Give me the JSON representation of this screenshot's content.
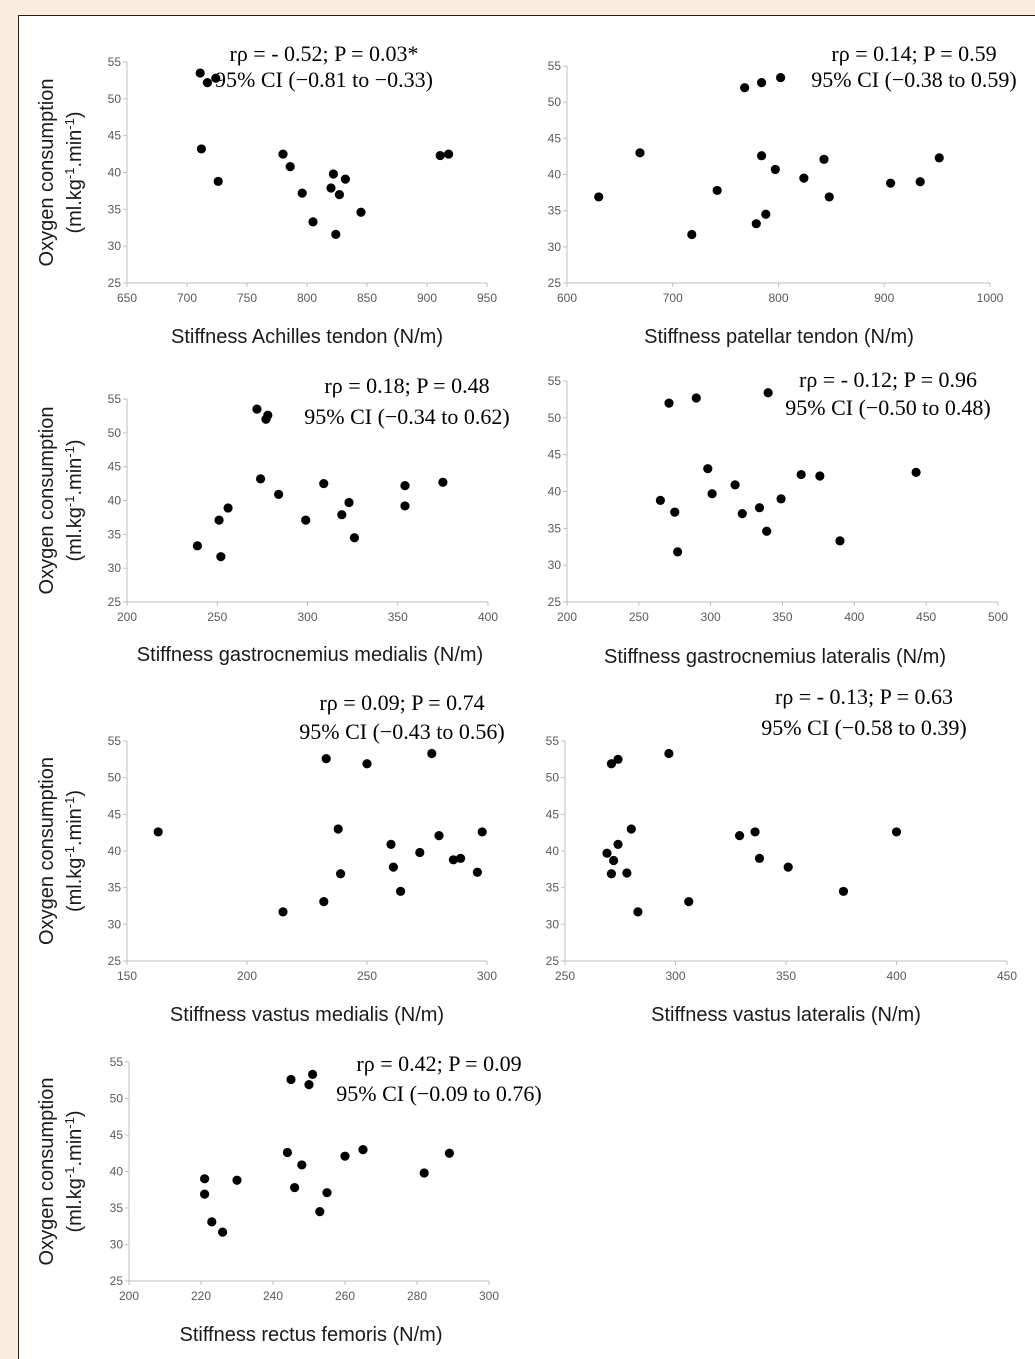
{
  "colors": {
    "page_background": "#fbeee0",
    "panel_background": "#ffffff",
    "point": "#000000",
    "axis": "#bfbfbf",
    "tick_text": "#595959"
  },
  "chart_data": [
    {
      "type": "scatter",
      "xlabel": "Stiffness Achilles tendon (N/m)",
      "ylabel": "Oxygen consumption (ml.kg-1.min-1)",
      "xlim": [
        650,
        950
      ],
      "ylim": [
        25,
        55
      ],
      "xticks": [
        "650",
        "700",
        "750",
        "800",
        "850",
        "900",
        "950"
      ],
      "yticks": [
        "25",
        "30",
        "35",
        "40",
        "45",
        "50",
        "55"
      ],
      "annotation": [
        "rρ = - 0.52; P = 0.03*",
        "95% CI (−0.81 to −0.33)"
      ],
      "points": [
        [
          711,
          53.5
        ],
        [
          717,
          52.2
        ],
        [
          724,
          52.8
        ],
        [
          712,
          43.2
        ],
        [
          726,
          38.8
        ],
        [
          780,
          42.5
        ],
        [
          786,
          40.8
        ],
        [
          796,
          37.2
        ],
        [
          805,
          33.3
        ],
        [
          822,
          39.8
        ],
        [
          820,
          37.9
        ],
        [
          832,
          39.1
        ],
        [
          827,
          37
        ],
        [
          824,
          31.6
        ],
        [
          845,
          34.6
        ],
        [
          911,
          42.3
        ],
        [
          918,
          42.5
        ]
      ]
    },
    {
      "type": "scatter",
      "xlabel": "Stiffness patellar tendon (N/m)",
      "ylabel": "",
      "xlim": [
        600,
        1000
      ],
      "ylim": [
        25,
        55
      ],
      "xticks": [
        "600",
        "700",
        "800",
        "900",
        "1000"
      ],
      "yticks": [
        "25",
        "30",
        "35",
        "40",
        "45",
        "50",
        "55"
      ],
      "annotation": [
        "rρ = 0.14; P = 0.59",
        "95% CI (−0.38 to 0.59)"
      ],
      "points": [
        [
          630,
          36.9
        ],
        [
          669,
          43
        ],
        [
          718,
          31.7
        ],
        [
          742,
          37.8
        ],
        [
          768,
          52
        ],
        [
          784,
          52.7
        ],
        [
          802,
          53.4
        ],
        [
          779,
          33.2
        ],
        [
          788,
          34.5
        ],
        [
          784,
          42.6
        ],
        [
          797,
          40.7
        ],
        [
          824,
          39.5
        ],
        [
          843,
          42.1
        ],
        [
          848,
          36.9
        ],
        [
          906,
          38.8
        ],
        [
          934,
          39
        ],
        [
          952,
          42.3
        ]
      ]
    },
    {
      "type": "scatter",
      "xlabel": "Stiffness gastrocnemius medialis (N/m)",
      "ylabel": "Oxygen consumption (ml.kg-1.min-1)",
      "xlim": [
        200,
        400
      ],
      "ylim": [
        25,
        55
      ],
      "xticks": [
        "200",
        "250",
        "300",
        "350",
        "400"
      ],
      "yticks": [
        "25",
        "30",
        "35",
        "40",
        "45",
        "50",
        "55"
      ],
      "annotation": [
        "rρ = 0.18; P = 0.48",
        "95% CI (−0.34 to 0.62)"
      ],
      "points": [
        [
          272,
          53.5
        ],
        [
          278,
          52.6
        ],
        [
          277,
          52
        ],
        [
          239,
          33.3
        ],
        [
          251,
          37.1
        ],
        [
          252,
          31.7
        ],
        [
          256,
          38.9
        ],
        [
          274,
          43.2
        ],
        [
          284,
          40.9
        ],
        [
          299,
          37.1
        ],
        [
          309,
          42.5
        ],
        [
          319,
          37.9
        ],
        [
          323,
          39.7
        ],
        [
          326,
          34.5
        ],
        [
          354,
          42.2
        ],
        [
          354,
          39.2
        ],
        [
          375,
          42.7
        ]
      ]
    },
    {
      "type": "scatter",
      "xlabel": "Stiffness gastrocnemius lateralis (N/m)",
      "ylabel": "",
      "xlim": [
        200,
        500
      ],
      "ylim": [
        25,
        55
      ],
      "xticks": [
        "200",
        "250",
        "300",
        "350",
        "400",
        "450",
        "500"
      ],
      "yticks": [
        "25",
        "30",
        "35",
        "40",
        "45",
        "50",
        "55"
      ],
      "annotation": [
        "rρ = - 0.12; P = 0.96",
        "95% CI (−0.50 to 0.48)"
      ],
      "points": [
        [
          271,
          52
        ],
        [
          290,
          52.7
        ],
        [
          340,
          53.4
        ],
        [
          265,
          38.8
        ],
        [
          275,
          37.2
        ],
        [
          277,
          31.8
        ],
        [
          298,
          43.1
        ],
        [
          301,
          39.7
        ],
        [
          317,
          40.9
        ],
        [
          322,
          37
        ],
        [
          334,
          37.8
        ],
        [
          339,
          34.6
        ],
        [
          349,
          39
        ],
        [
          363,
          42.3
        ],
        [
          376,
          42.1
        ],
        [
          390,
          33.3
        ],
        [
          443,
          42.6
        ]
      ]
    },
    {
      "type": "scatter",
      "xlabel": "Stiffness vastus medialis (N/m)",
      "ylabel": "Oxygen consumption (ml.kg-1.min-1)",
      "xlim": [
        150,
        300
      ],
      "ylim": [
        25,
        55
      ],
      "xticks": [
        "150",
        "200",
        "250",
        "300"
      ],
      "yticks": [
        "25",
        "30",
        "35",
        "40",
        "45",
        "50",
        "55"
      ],
      "annotation": [
        "rρ = 0.09; P = 0.74",
        "95% CI (−0.43 to 0.56)"
      ],
      "points": [
        [
          163,
          42.6
        ],
        [
          215,
          31.7
        ],
        [
          232,
          33.1
        ],
        [
          233,
          52.6
        ],
        [
          238,
          43
        ],
        [
          239,
          36.9
        ],
        [
          250,
          51.9
        ],
        [
          260,
          40.9
        ],
        [
          261,
          37.8
        ],
        [
          264,
          34.5
        ],
        [
          272,
          39.8
        ],
        [
          277,
          53.3
        ],
        [
          280,
          42.1
        ],
        [
          286,
          38.8
        ],
        [
          289,
          39
        ],
        [
          296,
          37.1
        ],
        [
          298,
          42.6
        ]
      ]
    },
    {
      "type": "scatter",
      "xlabel": "Stiffness vastus lateralis (N/m)",
      "ylabel": "",
      "xlim": [
        250,
        450
      ],
      "ylim": [
        25,
        55
      ],
      "xticks": [
        "250",
        "300",
        "350",
        "400",
        "450"
      ],
      "yticks": [
        "25",
        "30",
        "35",
        "40",
        "45",
        "50",
        "55"
      ],
      "annotation": [
        "rρ = - 0.13; P = 0.63",
        "95% CI (−0.58 to 0.39)"
      ],
      "points": [
        [
          269,
          39.7
        ],
        [
          271,
          51.9
        ],
        [
          274,
          52.5
        ],
        [
          297,
          53.3
        ],
        [
          271,
          36.9
        ],
        [
          272,
          38.7
        ],
        [
          274,
          40.9
        ],
        [
          278,
          37
        ],
        [
          280,
          43
        ],
        [
          283,
          31.7
        ],
        [
          306,
          33.1
        ],
        [
          329,
          42.1
        ],
        [
          336,
          42.6
        ],
        [
          338,
          39
        ],
        [
          351,
          37.8
        ],
        [
          376,
          34.5
        ],
        [
          400,
          42.6
        ]
      ]
    },
    {
      "type": "scatter",
      "xlabel": "Stiffness rectus femoris (N/m)",
      "ylabel": "Oxygen consumption (ml.kg-1.min-1)",
      "xlim": [
        200,
        300
      ],
      "ylim": [
        25,
        55
      ],
      "xticks": [
        "200",
        "220",
        "240",
        "260",
        "280",
        "300"
      ],
      "yticks": [
        "25",
        "30",
        "35",
        "40",
        "45",
        "50",
        "55"
      ],
      "annotation": [
        "rρ = 0.42; P = 0.09",
        "95% CI (−0.09 to 0.76)"
      ],
      "points": [
        [
          245,
          52.6
        ],
        [
          251,
          53.3
        ],
        [
          250,
          51.9
        ],
        [
          221,
          39
        ],
        [
          221,
          36.9
        ],
        [
          223,
          33.1
        ],
        [
          226,
          31.7
        ],
        [
          230,
          38.8
        ],
        [
          244,
          42.6
        ],
        [
          246,
          37.8
        ],
        [
          248,
          40.9
        ],
        [
          253,
          34.5
        ],
        [
          255,
          37.1
        ],
        [
          260,
          42.1
        ],
        [
          265,
          43
        ],
        [
          282,
          39.8
        ],
        [
          289,
          42.5
        ]
      ]
    }
  ]
}
